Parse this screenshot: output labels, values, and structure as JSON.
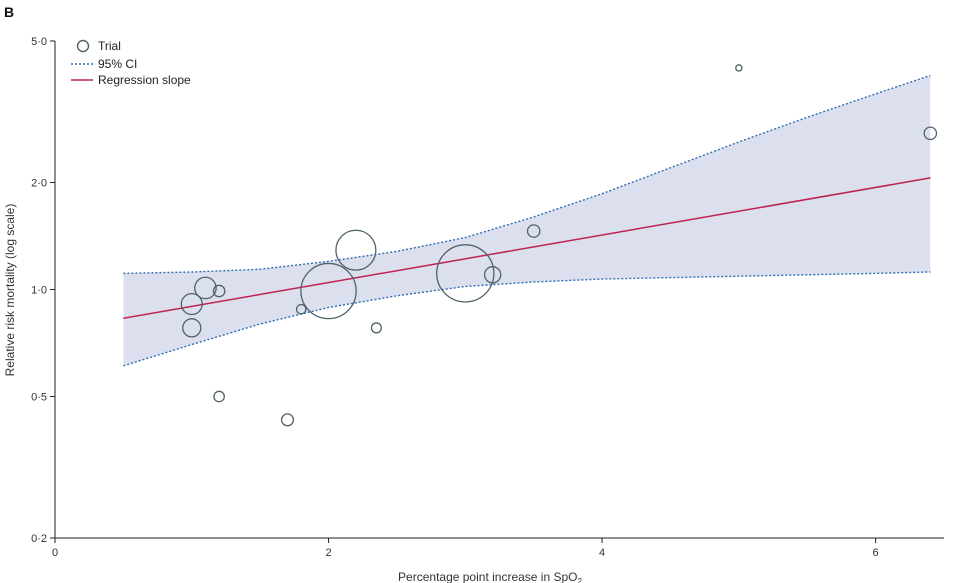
{
  "panel_label": "B",
  "chart_data": {
    "type": "scatter",
    "xlabel": "Percentage point increase in SpO",
    "xlabel_subscript": "2",
    "ylabel": "Relative risk mortality (log scale)",
    "y_scale": "log",
    "xlim": [
      0,
      6.5
    ],
    "ylim": [
      0.2,
      5.0
    ],
    "x_ticks": [
      0,
      2,
      4,
      6
    ],
    "x_tick_labels": [
      "0",
      "2",
      "4",
      "6"
    ],
    "y_ticks": [
      0.2,
      0.5,
      1.0,
      2.0,
      5.0
    ],
    "y_tick_labels": [
      "0·2",
      "0·5",
      "1·0",
      "2·0",
      "5·0"
    ],
    "grid": false,
    "legend": {
      "placement": "top-left",
      "entries": [
        {
          "label": "Trial",
          "marker": "open-circle"
        },
        {
          "label": "95% CI",
          "marker": "dotted-line"
        },
        {
          "label": "Regression slope",
          "marker": "solid-line"
        }
      ]
    },
    "colors": {
      "trial": "#4f6368",
      "ci_line": "#2e6db4",
      "ci_fill": "#dcdfee",
      "regression": "#c0224f",
      "axis": "#222222"
    },
    "trials": [
      {
        "x": 1.0,
        "y": 0.91,
        "weight": 0.4
      },
      {
        "x": 1.0,
        "y": 0.78,
        "weight": 0.3
      },
      {
        "x": 1.1,
        "y": 1.01,
        "weight": 0.42
      },
      {
        "x": 1.2,
        "y": 0.99,
        "weight": 0.12
      },
      {
        "x": 1.2,
        "y": 0.5,
        "weight": 0.1
      },
      {
        "x": 1.7,
        "y": 0.43,
        "weight": 0.13
      },
      {
        "x": 1.8,
        "y": 0.88,
        "weight": 0.08
      },
      {
        "x": 2.0,
        "y": 0.99,
        "weight": 2.8
      },
      {
        "x": 2.2,
        "y": 1.29,
        "weight": 1.46
      },
      {
        "x": 2.35,
        "y": 0.78,
        "weight": 0.09
      },
      {
        "x": 3.0,
        "y": 1.11,
        "weight": 3.0
      },
      {
        "x": 3.2,
        "y": 1.1,
        "weight": 0.24
      },
      {
        "x": 3.5,
        "y": 1.46,
        "weight": 0.14
      },
      {
        "x": 5.0,
        "y": 4.2,
        "weight": 0.035
      },
      {
        "x": 6.4,
        "y": 2.75,
        "weight": 0.14
      }
    ],
    "regression_slope": [
      {
        "x": 0.5,
        "y": 0.83
      },
      {
        "x": 6.4,
        "y": 2.06
      }
    ],
    "ci_upper": [
      {
        "x": 0.5,
        "y": 1.11
      },
      {
        "x": 1.0,
        "y": 1.12
      },
      {
        "x": 1.5,
        "y": 1.14
      },
      {
        "x": 2.0,
        "y": 1.2
      },
      {
        "x": 2.5,
        "y": 1.28
      },
      {
        "x": 3.0,
        "y": 1.4
      },
      {
        "x": 3.5,
        "y": 1.6
      },
      {
        "x": 4.0,
        "y": 1.86
      },
      {
        "x": 4.5,
        "y": 2.2
      },
      {
        "x": 5.0,
        "y": 2.6
      },
      {
        "x": 5.5,
        "y": 3.05
      },
      {
        "x": 6.0,
        "y": 3.55
      },
      {
        "x": 6.4,
        "y": 4.0
      }
    ],
    "ci_lower": [
      {
        "x": 0.5,
        "y": 0.61
      },
      {
        "x": 1.0,
        "y": 0.7
      },
      {
        "x": 1.5,
        "y": 0.8
      },
      {
        "x": 2.0,
        "y": 0.89
      },
      {
        "x": 2.5,
        "y": 0.96
      },
      {
        "x": 3.0,
        "y": 1.02
      },
      {
        "x": 3.5,
        "y": 1.05
      },
      {
        "x": 4.0,
        "y": 1.07
      },
      {
        "x": 4.5,
        "y": 1.08
      },
      {
        "x": 5.0,
        "y": 1.09
      },
      {
        "x": 5.5,
        "y": 1.1
      },
      {
        "x": 6.0,
        "y": 1.11
      },
      {
        "x": 6.4,
        "y": 1.12
      }
    ]
  }
}
